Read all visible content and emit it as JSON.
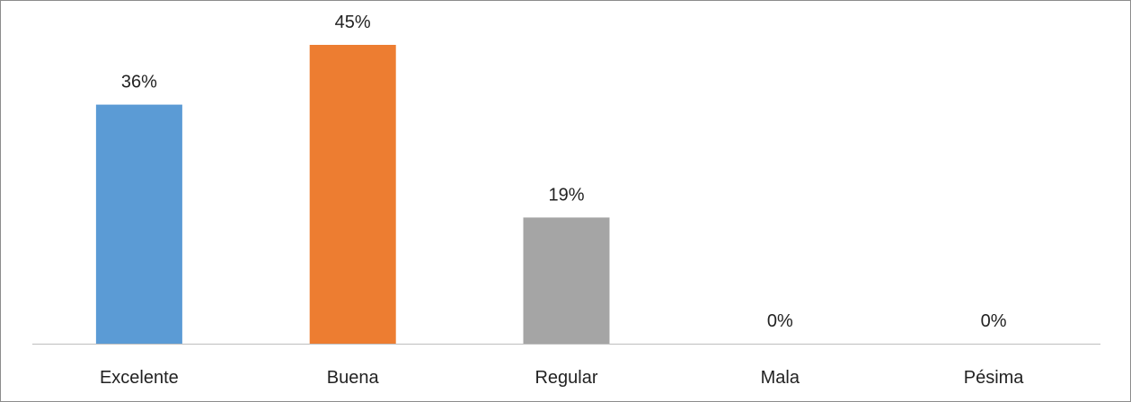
{
  "chart_data": {
    "type": "bar",
    "title": "",
    "xlabel": "",
    "ylabel": "",
    "categories": [
      "Excelente",
      "Buena",
      "Regular",
      "Mala",
      "Pésima"
    ],
    "values": [
      36,
      45,
      19,
      0,
      0
    ],
    "data_labels": [
      "36%",
      "45%",
      "19%",
      "0%",
      "0%"
    ],
    "colors": [
      "#5b9bd5",
      "#ed7d31",
      "#a5a5a5",
      "#ffc000",
      "#4472c4"
    ],
    "ylim": [
      0,
      50
    ],
    "grid": false,
    "legend": "none",
    "axis_color": "#bfbfbf"
  }
}
